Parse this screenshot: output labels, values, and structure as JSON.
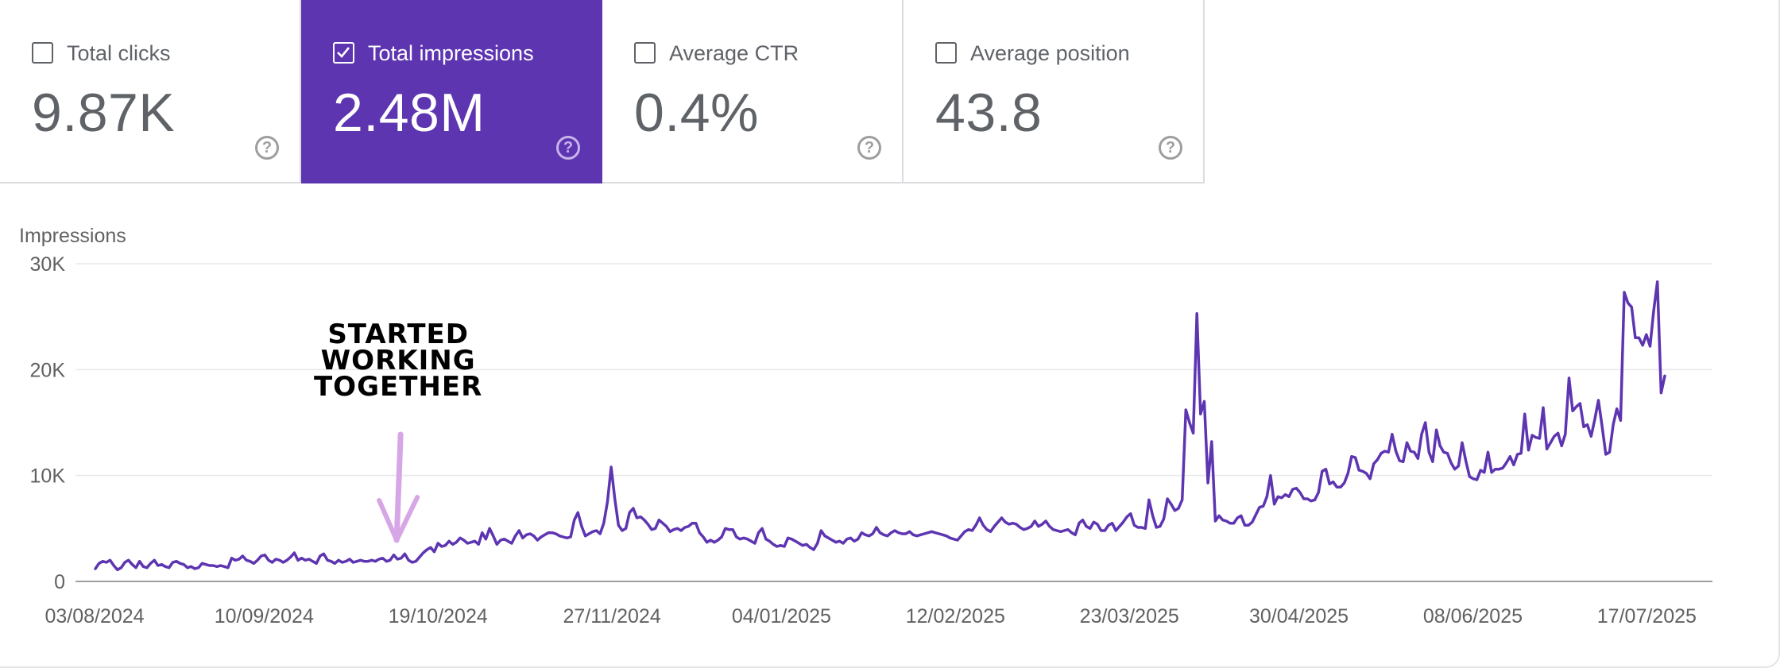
{
  "metrics": [
    {
      "label": "Total clicks",
      "value": "9.87K",
      "selected": false,
      "icon": "checkbox-icon",
      "help_icon": "help-icon"
    },
    {
      "label": "Total impressions",
      "value": "2.48M",
      "selected": true,
      "icon": "checkbox-checked-icon",
      "help_icon": "help-icon"
    },
    {
      "label": "Average CTR",
      "value": "0.4%",
      "selected": false,
      "icon": "checkbox-icon",
      "help_icon": "help-icon"
    },
    {
      "label": "Average position",
      "value": "43.8",
      "selected": false,
      "icon": "checkbox-icon",
      "help_icon": "help-icon"
    }
  ],
  "colors": {
    "accent": "#5e35b1",
    "line": "#5e35b1",
    "annotation_arrow": "#d7a6e6",
    "grid": "#e8e8e8"
  },
  "chart_data": {
    "type": "line",
    "title": "",
    "xlabel": "",
    "ylabel": "Impressions",
    "ylim": [
      0,
      30000
    ],
    "yticks": [
      0,
      10000,
      20000,
      30000
    ],
    "ytick_labels": [
      "0",
      "10K",
      "20K",
      "30K"
    ],
    "xtick_labels": [
      "03/08/2024",
      "10/09/2024",
      "19/10/2024",
      "27/11/2024",
      "04/01/2025",
      "12/02/2025",
      "23/03/2025",
      "30/04/2025",
      "08/06/2025",
      "17/07/2025"
    ],
    "x_start": "2024-08-03",
    "x_end": "2025-08-05",
    "grid": true,
    "annotation": {
      "lines": [
        "STARTED",
        "WORKING",
        "TOGETHER"
      ],
      "date": "2024-10-14",
      "arrow": "down"
    },
    "series": [
      {
        "values": [
          1200,
          1700,
          1900,
          1800,
          2000,
          1500,
          1100,
          1300,
          1800,
          2000,
          1600,
          1300,
          1900,
          1400,
          1300,
          1700,
          2000,
          1500,
          1600,
          1400,
          1300,
          1800,
          1900,
          1700,
          1600,
          1300,
          1400,
          1200,
          1300,
          1700,
          1600,
          1500,
          1500,
          1400,
          1500,
          1400,
          1300,
          2200,
          2000,
          2100,
          2400,
          2000,
          1900,
          1700,
          2000,
          2400,
          2500,
          2000,
          1800,
          2100,
          2000,
          1800,
          2000,
          2300,
          2700,
          2000,
          2200,
          2000,
          2100,
          1900,
          1700,
          2400,
          2600,
          2000,
          1900,
          1700,
          2000,
          1800,
          1900,
          2100,
          1800,
          1900,
          2000,
          1900,
          1900,
          2000,
          1900,
          2100,
          2200,
          1900,
          2000,
          2500,
          2100,
          2200,
          2600,
          2000,
          1800,
          1900,
          2300,
          2700,
          3000,
          3200,
          2800,
          3600,
          3300,
          3400,
          3800,
          3500,
          3700,
          4100,
          3900,
          3600,
          3700,
          3800,
          3500,
          4600,
          4000,
          5000,
          4300,
          3500,
          3900,
          4000,
          3800,
          3600,
          4300,
          4800,
          4100,
          4400,
          4500,
          4300,
          3900,
          4200,
          4400,
          4600,
          4600,
          4500,
          4300,
          4200,
          4100,
          4200,
          5800,
          6500,
          5200,
          4300,
          4500,
          4700,
          4800,
          4500,
          5500,
          7500,
          10800,
          7800,
          5300,
          4800,
          5000,
          6500,
          6900,
          6000,
          6100,
          5800,
          5400,
          4900,
          5000,
          5800,
          5500,
          5200,
          4700,
          4900,
          5000,
          4800,
          5100,
          5200,
          5500,
          5500,
          4600,
          4200,
          3700,
          3900,
          3700,
          3900,
          4200,
          5000,
          4900,
          4900,
          4200,
          4000,
          4100,
          4000,
          3800,
          3600,
          4600,
          5000,
          4000,
          3800,
          3500,
          3300,
          3400,
          3300,
          4100,
          4000,
          3800,
          3600,
          3400,
          3500,
          3200,
          3000,
          3600,
          4800,
          4300,
          4100,
          3900,
          3700,
          3800,
          3600,
          4000,
          4100,
          3800,
          4000,
          4600,
          4400,
          4300,
          4500,
          5100,
          4600,
          4400,
          4300,
          4600,
          4800,
          4600,
          4500,
          4500,
          4700,
          4400,
          4300,
          4400,
          4500,
          4600,
          4700,
          4600,
          4500,
          4400,
          4300,
          4100,
          4000,
          3900,
          4300,
          4700,
          4900,
          4800,
          5300,
          6000,
          5300,
          4900,
          4700,
          5200,
          5600,
          6000,
          5600,
          5400,
          5500,
          5400,
          5100,
          4900,
          5000,
          5200,
          5700,
          5200,
          5400,
          5700,
          5200,
          4900,
          4800,
          4700,
          4800,
          4900,
          4600,
          4400,
          5500,
          5800,
          5200,
          5000,
          5600,
          5400,
          4800,
          4800,
          5300,
          5500,
          4800,
          5200,
          5600,
          6100,
          6400,
          5300,
          5100,
          5100,
          5000,
          7700,
          6200,
          5100,
          5200,
          5900,
          7800,
          7300,
          6700,
          6900,
          7700,
          16200,
          15000,
          14000,
          25300,
          15800,
          17000,
          9300,
          13200,
          5700,
          6200,
          5800,
          5700,
          5500,
          5500,
          6000,
          6200,
          5300,
          5300,
          5600,
          6300,
          7000,
          7100,
          8000,
          10000,
          7300,
          8000,
          7900,
          8200,
          8000,
          8700,
          8800,
          8400,
          7800,
          7800,
          7600,
          7700,
          8400,
          10400,
          10600,
          9200,
          9400,
          8900,
          8900,
          9300,
          10200,
          11800,
          11700,
          10500,
          10400,
          10200,
          9700,
          11100,
          11500,
          12100,
          12300,
          12200,
          13900,
          12300,
          11400,
          11300,
          13100,
          12300,
          12200,
          11600,
          13900,
          15000,
          12200,
          11300,
          14300,
          12800,
          12200,
          12100,
          11200,
          10600,
          10900,
          13100,
          11400,
          9900,
          9700,
          9600,
          10500,
          10300,
          12200,
          10300,
          10600,
          10600,
          10700,
          11200,
          11800,
          11000,
          12000,
          12100,
          15800,
          12400,
          13800,
          13600,
          13500,
          16400,
          12500,
          13100,
          13700,
          14000,
          12800,
          13900,
          19200,
          16100,
          16500,
          16800,
          14600,
          14800,
          13700,
          15300,
          17100,
          14600,
          12000,
          12200,
          14800,
          16300,
          15200,
          27300,
          26300,
          25900,
          23000,
          23000,
          22300,
          23300,
          22200,
          25600,
          28300,
          17800,
          19400
        ]
      }
    ]
  }
}
